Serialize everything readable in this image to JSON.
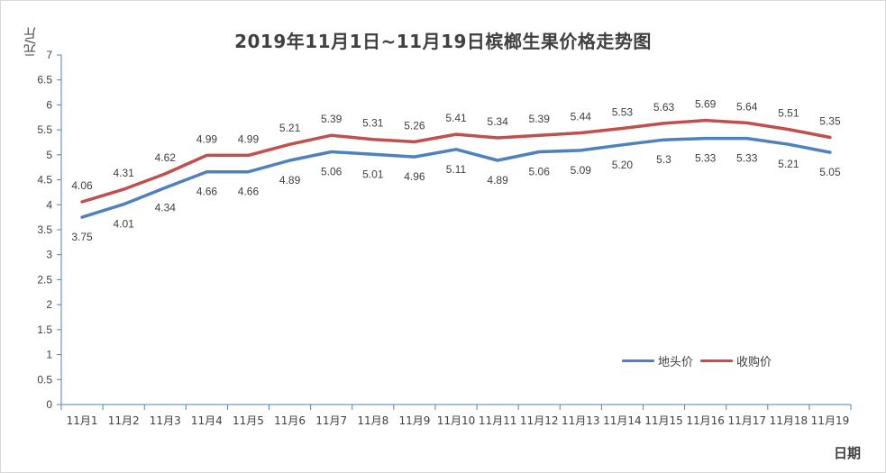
{
  "chart_data": {
    "type": "line",
    "title": "2019年11月1日~11月19日槟榔生果价格走势图",
    "ylabel": "元/斤",
    "xlabel": "日期",
    "ylim": [
      0,
      7
    ],
    "yticks": [
      "0",
      "0.5",
      "1",
      "1.5",
      "2",
      "2.5",
      "3",
      "3.5",
      "4",
      "4.5",
      "5",
      "5.5",
      "6",
      "6.5",
      "7"
    ],
    "categories": [
      "11月1",
      "11月2",
      "11月3",
      "11月4",
      "11月5",
      "11月6",
      "11月7",
      "11月8",
      "11月9",
      "11月10",
      "11月11",
      "11月12",
      "11月13",
      "11月14",
      "11月15",
      "11月16",
      "11月17",
      "11月18",
      "11月19"
    ],
    "series": [
      {
        "name": "地头价",
        "color": "#4f81bd",
        "values": [
          3.75,
          4.01,
          4.34,
          4.66,
          4.66,
          4.89,
          5.06,
          5.01,
          4.96,
          5.11,
          4.89,
          5.06,
          5.09,
          5.2,
          5.3,
          5.33,
          5.33,
          5.21,
          5.05
        ],
        "labels": [
          "3.75",
          "4.01",
          "4.34",
          "4.66",
          "4.66",
          "4.89",
          "5.06",
          "5.01",
          "4.96",
          "5.11",
          "4.89",
          "5.06",
          "5.09",
          "5.20",
          "5.3",
          "5.33",
          "5.33",
          "5.21",
          "5.05"
        ]
      },
      {
        "name": "收购价",
        "color": "#c0504d",
        "values": [
          4.06,
          4.31,
          4.62,
          4.99,
          4.99,
          5.21,
          5.39,
          5.31,
          5.26,
          5.41,
          5.34,
          5.39,
          5.44,
          5.53,
          5.63,
          5.69,
          5.64,
          5.51,
          5.35
        ],
        "labels": [
          "4.06",
          "4.31",
          "4.62",
          "4.99",
          "4.99",
          "5.21",
          "5.39",
          "5.31",
          "5.26",
          "5.41",
          "5.34",
          "5.39",
          "5.44",
          "5.53",
          "5.63",
          "5.69",
          "5.64",
          "5.51",
          "5.35"
        ]
      }
    ],
    "grid": false,
    "legend": "bottom-right"
  }
}
